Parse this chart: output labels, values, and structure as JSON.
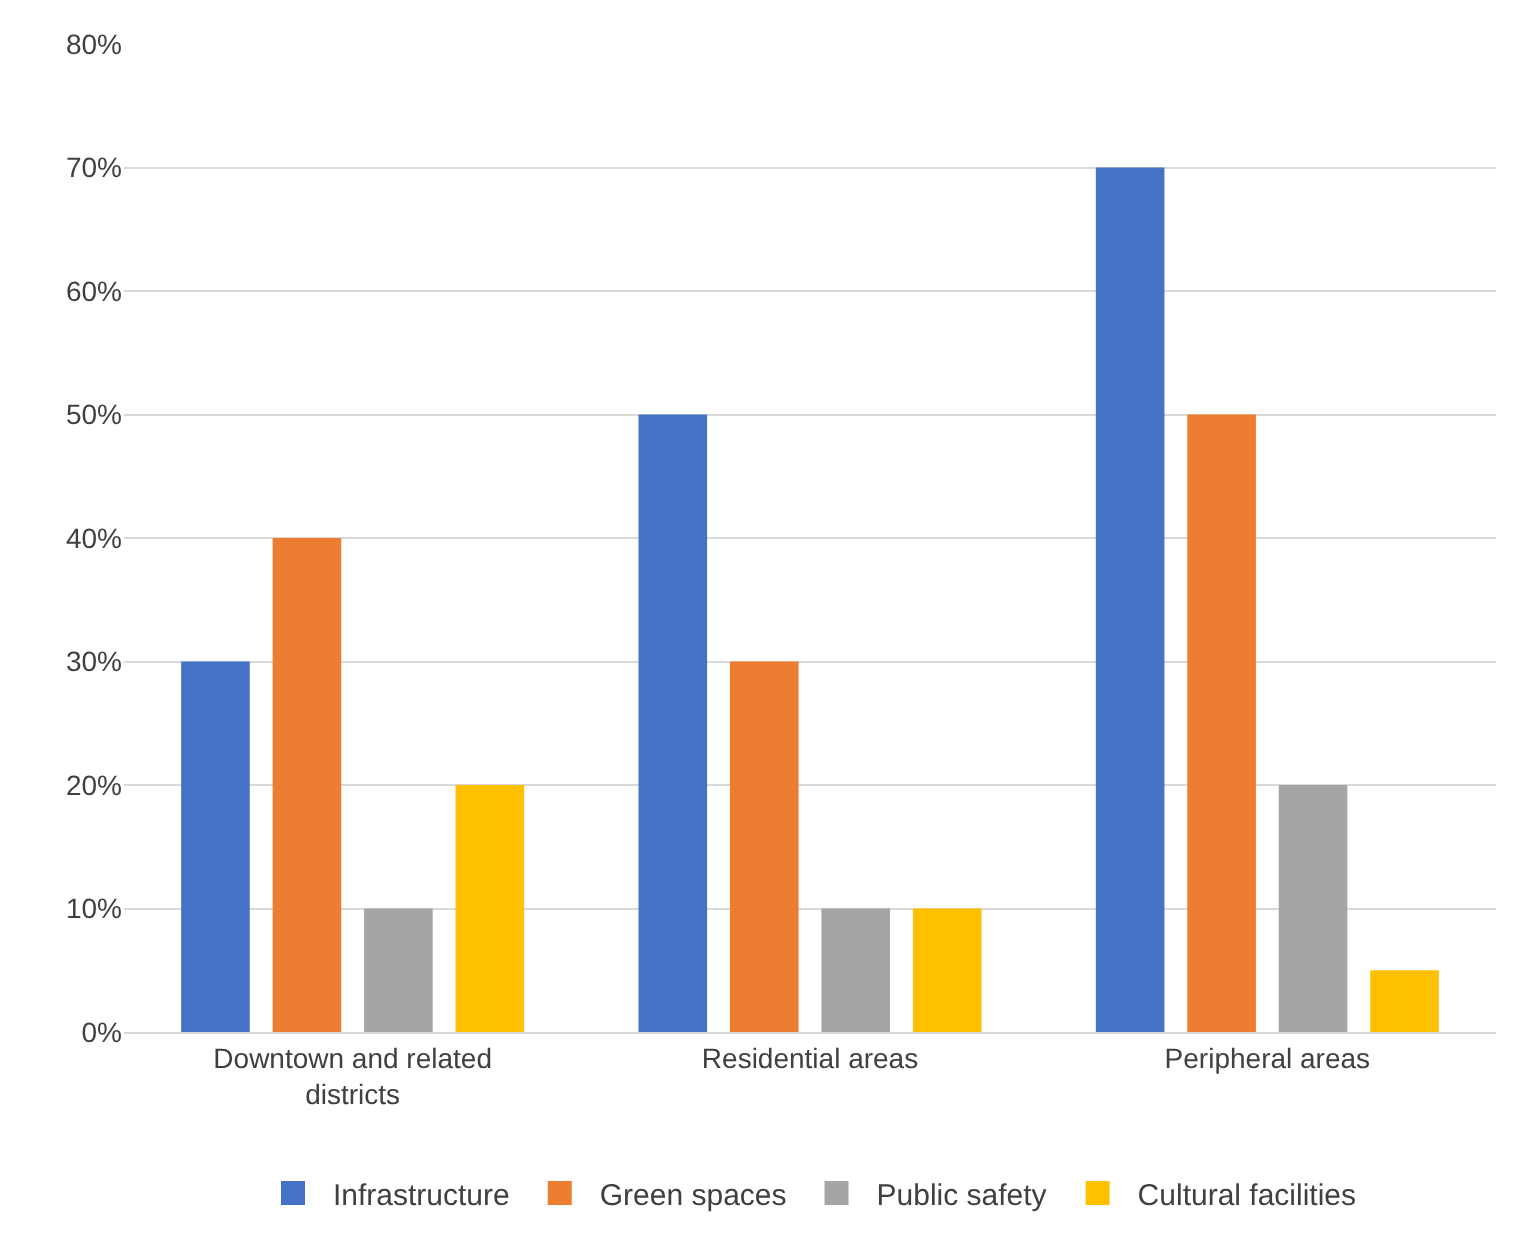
{
  "chart_data": {
    "type": "bar",
    "categories": [
      "Downtown and related districts",
      "Residential areas",
      "Peripheral areas"
    ],
    "series": [
      {
        "name": "Infrastructure",
        "color": "#4472c4",
        "values": [
          30,
          50,
          70
        ]
      },
      {
        "name": "Green spaces",
        "color": "#ed7d31",
        "values": [
          40,
          30,
          50
        ]
      },
      {
        "name": "Public safety",
        "color": "#a5a5a5",
        "values": [
          10,
          10,
          20
        ]
      },
      {
        "name": "Cultural facilities",
        "color": "#ffc000",
        "values": [
          20,
          10,
          5
        ]
      }
    ],
    "ylim": [
      0,
      80
    ],
    "yticks": [
      {
        "value": 0,
        "label": "0%"
      },
      {
        "value": 10,
        "label": "10%"
      },
      {
        "value": 20,
        "label": "20%"
      },
      {
        "value": 30,
        "label": "30%"
      },
      {
        "value": 40,
        "label": "40%"
      },
      {
        "value": 50,
        "label": "50%"
      },
      {
        "value": 60,
        "label": "60%"
      },
      {
        "value": 70,
        "label": "70%"
      },
      {
        "value": 80,
        "label": "80%"
      }
    ],
    "grid": "y",
    "legend": "bottom"
  }
}
